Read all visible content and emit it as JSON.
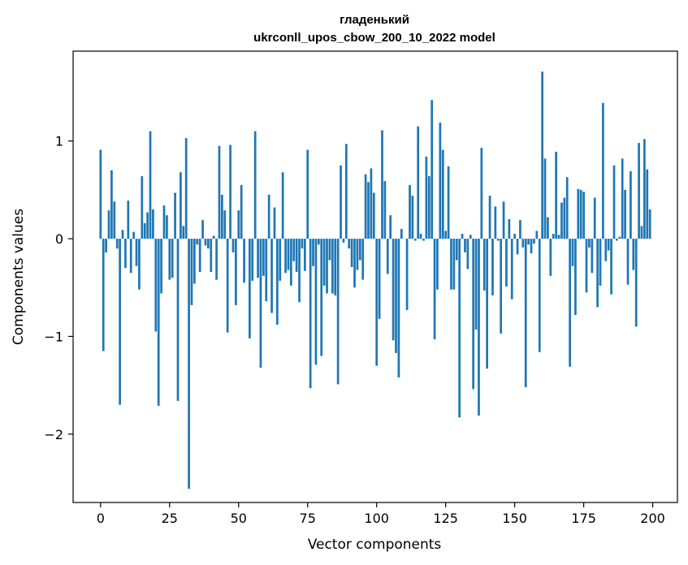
{
  "chart_data": {
    "type": "bar",
    "title": "гладенький",
    "subtitle": "ukrconll_upos_cbow_200_10_2022 model",
    "xlabel": "Vector components",
    "ylabel": "Components values",
    "xlim": [
      -9.95,
      208.95
    ],
    "ylim": [
      -2.7,
      1.92
    ],
    "xticks": [
      0,
      25,
      50,
      75,
      100,
      125,
      150,
      175,
      200
    ],
    "xtick_labels": [
      "0",
      "25",
      "50",
      "75",
      "100",
      "125",
      "150",
      "175",
      "200"
    ],
    "yticks": [
      -2,
      -1,
      0,
      1
    ],
    "ytick_labels": [
      "−2",
      "−1",
      "0",
      "1"
    ],
    "grid": false,
    "bar_color": "#1f77b4",
    "values": [
      0.91,
      -1.15,
      -0.14,
      0.29,
      0.7,
      0.38,
      -0.1,
      -1.7,
      0.09,
      -0.3,
      0.39,
      -0.35,
      0.07,
      -0.28,
      -0.52,
      0.64,
      0.16,
      0.27,
      1.1,
      0.3,
      -0.95,
      -1.71,
      -0.56,
      0.34,
      0.24,
      -0.42,
      -0.4,
      0.47,
      -1.66,
      0.68,
      0.13,
      1.03,
      -2.56,
      -0.68,
      -0.46,
      -0.06,
      -0.34,
      0.19,
      -0.07,
      -0.1,
      -0.34,
      0.03,
      -0.42,
      0.95,
      0.45,
      0.29,
      -0.96,
      0.96,
      -0.14,
      -0.68,
      0.29,
      0.55,
      -0.45,
      0.0,
      -1.02,
      -0.43,
      1.1,
      -0.4,
      -1.32,
      -0.38,
      -0.64,
      0.45,
      -0.76,
      0.32,
      -0.88,
      -0.43,
      0.68,
      -0.35,
      -0.32,
      -0.48,
      -0.23,
      -0.34,
      -0.65,
      -0.1,
      -0.33,
      0.91,
      -1.53,
      -0.28,
      -1.29,
      -0.06,
      -1.2,
      -0.48,
      -0.56,
      -0.22,
      -0.56,
      -0.58,
      -1.49,
      0.75,
      -0.04,
      0.97,
      -0.1,
      -0.29,
      -0.5,
      -0.32,
      -0.22,
      -0.42,
      0.66,
      0.58,
      0.72,
      0.47,
      -1.3,
      -0.82,
      1.11,
      0.59,
      -0.36,
      0.24,
      -1.04,
      -1.17,
      -1.42,
      0.1,
      0.0,
      -0.73,
      0.55,
      0.44,
      -0.02,
      1.15,
      0.05,
      -0.02,
      0.84,
      0.64,
      1.42,
      -1.03,
      -0.52,
      1.19,
      0.91,
      0.08,
      0.74,
      -0.52,
      -0.52,
      -0.22,
      -1.83,
      0.05,
      -0.14,
      -0.31,
      0.04,
      -1.54,
      -0.93,
      -1.81,
      0.93,
      -0.53,
      -1.33,
      0.44,
      -0.58,
      0.33,
      -0.02,
      -0.97,
      0.38,
      -0.49,
      0.2,
      -0.62,
      0.05,
      -0.16,
      0.19,
      -0.09,
      -1.52,
      -0.06,
      -0.15,
      -0.05,
      0.08,
      -1.16,
      1.71,
      0.82,
      0.22,
      -0.38,
      0.05,
      0.89,
      0.04,
      0.37,
      0.42,
      0.63,
      -1.31,
      -0.28,
      -0.78,
      0.51,
      0.5,
      0.48,
      -0.55,
      -0.09,
      -0.35,
      0.42,
      -0.7,
      -0.48,
      1.39,
      -0.23,
      -0.12,
      -0.57,
      0.75,
      -0.02,
      0.02,
      0.82,
      0.5,
      -0.47,
      0.69,
      -0.32,
      -0.9,
      0.98,
      0.13,
      1.02,
      0.71,
      0.3
    ]
  }
}
